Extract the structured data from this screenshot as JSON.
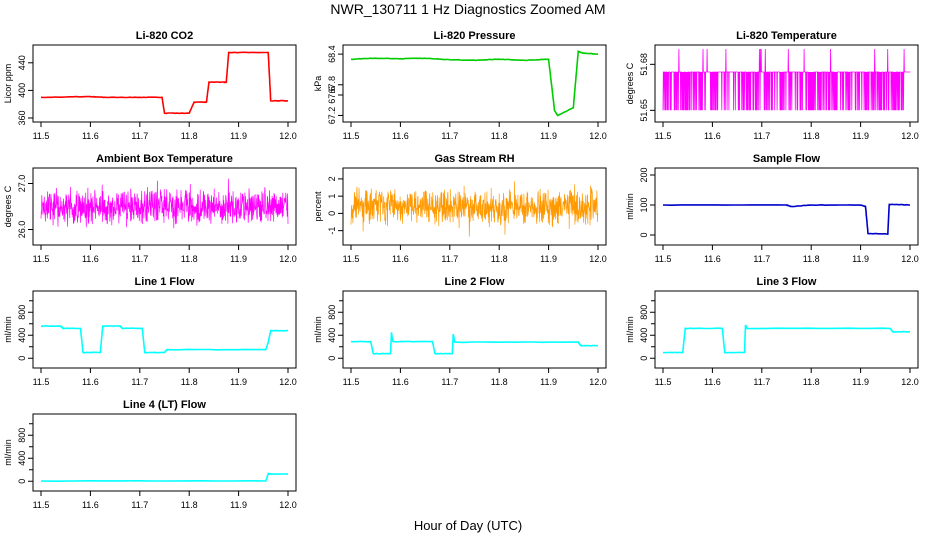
{
  "title": "NWR_130711  1 Hz Diagnostics Zoomed AM",
  "xlabel": "Hour of Day (UTC)",
  "chart_data": [
    {
      "type": "line",
      "title": "Li-820 CO2",
      "ylabel": "Licor ppm",
      "color": "#ff0000",
      "xlim": [
        11.5,
        12.0
      ],
      "xticks": [
        11.5,
        11.6,
        11.7,
        11.8,
        11.9,
        12.0
      ],
      "ylim": [
        360,
        460
      ],
      "yticks": [
        360,
        400,
        440
      ],
      "series": [
        {
          "x": [
            11.5,
            11.6,
            11.63,
            11.7,
            11.745,
            11.75,
            11.8,
            11.81,
            11.83,
            11.835,
            11.84,
            11.87,
            11.875,
            11.88,
            11.96,
            11.965,
            12.0
          ],
          "y": [
            390,
            391,
            390,
            390,
            390,
            367,
            367,
            383,
            383,
            383,
            412,
            412,
            412,
            455,
            455,
            385,
            385
          ]
        }
      ]
    },
    {
      "type": "line",
      "title": "Li-820 Pressure",
      "ylabel": "kPa",
      "color": "#00cc00",
      "xlim": [
        11.5,
        12.0
      ],
      "xticks": [
        11.5,
        11.6,
        11.7,
        11.8,
        11.9,
        12.0
      ],
      "ylim": [
        67.15,
        68.5
      ],
      "yticks": [
        67.2,
        67.6,
        67.8,
        68.4
      ],
      "yticklabels": [
        "67.2",
        "67.6",
        "67.8",
        "68.4"
      ],
      "series": [
        {
          "x": [
            11.5,
            11.55,
            11.6,
            11.65,
            11.7,
            11.75,
            11.8,
            11.85,
            11.9,
            11.912,
            11.918,
            11.95,
            11.955,
            11.96,
            11.97,
            12.0
          ],
          "y": [
            68.3,
            68.32,
            68.31,
            68.32,
            68.29,
            68.28,
            68.3,
            68.28,
            68.3,
            67.3,
            67.2,
            67.35,
            67.9,
            68.45,
            68.42,
            68.4
          ]
        }
      ]
    },
    {
      "type": "line",
      "title": "Li-820 Temperature",
      "ylabel": "degrees C",
      "color": "#ff00ff",
      "xlim": [
        11.5,
        12.0
      ],
      "xticks": [
        11.5,
        11.6,
        11.7,
        11.8,
        11.9,
        12.0
      ],
      "ylim": [
        51.645,
        51.69
      ],
      "yticks": [
        51.65,
        51.68
      ],
      "yticklabels": [
        "51.65",
        "51.68"
      ],
      "pattern": "quantized",
      "levels": [
        51.65,
        51.675,
        51.69
      ]
    },
    {
      "type": "line",
      "title": "Ambient Box Temperature",
      "ylabel": "degrees C",
      "color": "#ff00ff",
      "xlim": [
        11.5,
        12.0
      ],
      "xticks": [
        11.5,
        11.6,
        11.7,
        11.8,
        11.9,
        12.0
      ],
      "ylim": [
        25.75,
        27.25
      ],
      "yticks": [
        26.0,
        27.0
      ],
      "yticklabels": [
        "26.0",
        "27.0"
      ],
      "pattern": "noise",
      "mean": 26.5,
      "amplitude": 0.45
    },
    {
      "type": "line",
      "title": "Gas Stream RH",
      "ylabel": "percent",
      "color": "#ff9900",
      "xlim": [
        11.5,
        12.0
      ],
      "xticks": [
        11.5,
        11.6,
        11.7,
        11.8,
        11.9,
        12.0
      ],
      "ylim": [
        -1.6,
        2.4
      ],
      "yticks": [
        -1,
        0,
        1,
        2
      ],
      "pattern": "noise",
      "mean": 0.4,
      "amplitude": 1.2
    },
    {
      "type": "line",
      "title": "Sample Flow",
      "ylabel": "ml/min",
      "color": "#0000cc",
      "xlim": [
        11.5,
        12.0
      ],
      "xticks": [
        11.5,
        11.6,
        11.7,
        11.8,
        11.9,
        12.0
      ],
      "ylim": [
        -20,
        210
      ],
      "yticks": [
        0,
        100,
        200
      ],
      "series": [
        {
          "x": [
            11.5,
            11.75,
            11.76,
            11.8,
            11.9,
            11.91,
            11.915,
            11.955,
            11.958,
            12.0
          ],
          "y": [
            100,
            100,
            95,
            100,
            100,
            95,
            5,
            3,
            102,
            100
          ]
        }
      ]
    },
    {
      "type": "line",
      "title": "Line 1 Flow",
      "ylabel": "ml/min",
      "color": "#00ffff",
      "xlim": [
        11.5,
        12.0
      ],
      "xticks": [
        11.5,
        11.6,
        11.7,
        11.8,
        11.9,
        12.0
      ],
      "ylim": [
        -100,
        1100
      ],
      "yticks": [
        0,
        400,
        800
      ],
      "yticks_minor": [
        200,
        600,
        1000
      ],
      "series": [
        {
          "x": [
            11.5,
            11.54,
            11.545,
            11.58,
            11.585,
            11.62,
            11.625,
            11.66,
            11.665,
            11.705,
            11.71,
            11.75,
            11.755,
            11.955,
            11.96,
            11.965,
            12.0
          ],
          "y": [
            560,
            560,
            520,
            520,
            100,
            100,
            560,
            560,
            520,
            520,
            100,
            100,
            150,
            150,
            280,
            480,
            480
          ]
        }
      ]
    },
    {
      "type": "line",
      "title": "Line 2 Flow",
      "ylabel": "ml/min",
      "color": "#00ffff",
      "xlim": [
        11.5,
        12.0
      ],
      "xticks": [
        11.5,
        11.6,
        11.7,
        11.8,
        11.9,
        12.0
      ],
      "ylim": [
        -100,
        1100
      ],
      "yticks": [
        0,
        400,
        800
      ],
      "yticks_minor": [
        200,
        600,
        1000
      ],
      "series": [
        {
          "x": [
            11.5,
            11.54,
            11.545,
            11.58,
            11.582,
            11.585,
            11.665,
            11.67,
            11.705,
            11.707,
            11.71,
            11.96,
            11.965,
            12.0
          ],
          "y": [
            290,
            290,
            80,
            80,
            450,
            290,
            290,
            80,
            80,
            420,
            280,
            280,
            220,
            220
          ]
        }
      ]
    },
    {
      "type": "line",
      "title": "Line 3 Flow",
      "ylabel": "ml/min",
      "color": "#00ffff",
      "xlim": [
        11.5,
        12.0
      ],
      "xticks": [
        11.5,
        11.6,
        11.7,
        11.8,
        11.9,
        12.0
      ],
      "ylim": [
        -100,
        1100
      ],
      "yticks": [
        0,
        400,
        800
      ],
      "yticks_minor": [
        200,
        600,
        1000
      ],
      "series": [
        {
          "x": [
            11.5,
            11.54,
            11.545,
            11.62,
            11.625,
            11.665,
            11.667,
            11.67,
            11.96,
            11.965,
            12.0
          ],
          "y": [
            100,
            100,
            520,
            520,
            100,
            100,
            580,
            520,
            520,
            460,
            460
          ]
        }
      ]
    },
    {
      "type": "line",
      "title": "Line 4 (LT) Flow",
      "ylabel": "ml/min",
      "color": "#00ffff",
      "xlim": [
        11.5,
        12.0
      ],
      "xticks": [
        11.5,
        11.6,
        11.7,
        11.8,
        11.9,
        12.0
      ],
      "ylim": [
        -100,
        1100
      ],
      "yticks": [
        0,
        400,
        800
      ],
      "yticks_minor": [
        200,
        600,
        1000
      ],
      "series": [
        {
          "x": [
            11.5,
            11.955,
            11.96,
            11.965,
            12.0
          ],
          "y": [
            5,
            5,
            130,
            125,
            125
          ]
        }
      ]
    }
  ]
}
